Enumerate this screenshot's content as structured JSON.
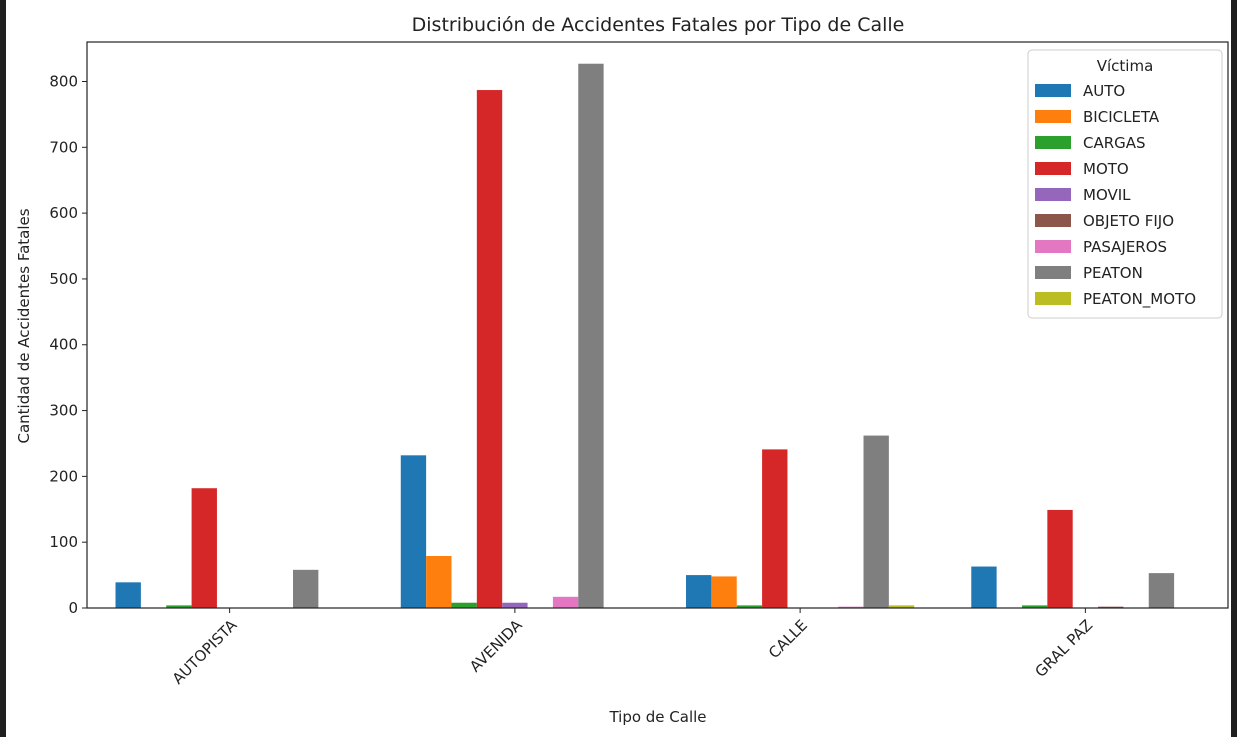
{
  "chart_data": {
    "type": "bar",
    "title": "Distribución de Accidentes Fatales por Tipo de Calle",
    "xlabel": "Tipo de Calle",
    "ylabel": "Cantidad de Accidentes Fatales",
    "ylim": [
      0,
      860
    ],
    "yticks": [
      0,
      100,
      200,
      300,
      400,
      500,
      600,
      700,
      800
    ],
    "categories": [
      "AUTOPISTA",
      "AVENIDA",
      "CALLE",
      "GRAL PAZ"
    ],
    "legend_title": "Víctima",
    "legend_position": "top-right",
    "series": [
      {
        "name": "AUTO",
        "color": "#1f77b4",
        "values": [
          39,
          232,
          50,
          63
        ]
      },
      {
        "name": "BICICLETA",
        "color": "#ff7f0e",
        "values": [
          0,
          79,
          48,
          0
        ]
      },
      {
        "name": "CARGAS",
        "color": "#2ca02c",
        "values": [
          4,
          8,
          4,
          4
        ]
      },
      {
        "name": "MOTO",
        "color": "#d62728",
        "values": [
          182,
          787,
          241,
          149
        ]
      },
      {
        "name": "MOVIL",
        "color": "#9467bd",
        "values": [
          0,
          8,
          0,
          0
        ]
      },
      {
        "name": "OBJETO FIJO",
        "color": "#8c564b",
        "values": [
          0,
          0,
          0,
          2
        ]
      },
      {
        "name": "PASAJEROS",
        "color": "#e377c2",
        "values": [
          0,
          17,
          2,
          0
        ]
      },
      {
        "name": "PEATON",
        "color": "#7f7f7f",
        "values": [
          58,
          827,
          262,
          53
        ]
      },
      {
        "name": "PEATON_MOTO",
        "color": "#bcbd22",
        "values": [
          0,
          0,
          4,
          0
        ]
      }
    ]
  }
}
